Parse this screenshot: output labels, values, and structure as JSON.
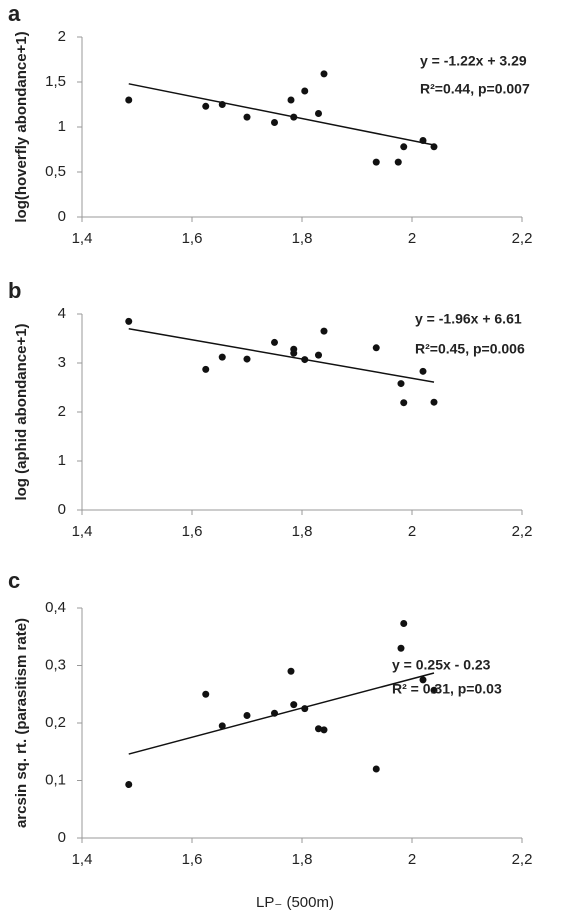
{
  "chart_data": [
    {
      "type": "scatter",
      "panel_label": "a",
      "y_label": "log(hoverfly abondance+1)",
      "equation": "y = -1.22x + 3.29",
      "stats": "R²=0.44,  p=0.007",
      "x": [
        1.485,
        1.625,
        1.655,
        1.7,
        1.75,
        1.78,
        1.785,
        1.805,
        1.83,
        1.84,
        1.935,
        1.975,
        1.985,
        2.02,
        2.04
      ],
      "values": [
        1.3,
        1.23,
        1.25,
        1.11,
        1.05,
        1.3,
        1.11,
        1.4,
        1.15,
        1.59,
        0.61,
        0.61,
        0.78,
        0.85,
        0.78
      ],
      "trendline": {
        "x": [
          1.485,
          2.04
        ],
        "y": [
          1.48,
          0.8
        ]
      },
      "color": "#111111",
      "xlim": [
        1.4,
        2.2
      ],
      "xticks": [
        {
          "value": 1.4,
          "label": "1,4"
        },
        {
          "value": 1.6,
          "label": "1,6"
        },
        {
          "value": 1.8,
          "label": "1,8"
        },
        2,
        {
          "value": 2.2,
          "label": "2,2"
        }
      ],
      "ylim": [
        0,
        2
      ],
      "yticks": [
        0,
        {
          "value": 0.5,
          "label": "0,5"
        },
        1,
        {
          "value": 1.5,
          "label": "1,5"
        },
        2
      ]
    },
    {
      "type": "scatter",
      "panel_label": "b",
      "y_label": "log (aphid abondance+1)",
      "equation": "y = -1.96x + 6.61",
      "stats": "R²=0.45,  p=0.006",
      "x": [
        1.485,
        1.625,
        1.655,
        1.7,
        1.75,
        1.785,
        1.785,
        1.805,
        1.83,
        1.84,
        1.935,
        1.98,
        1.985,
        2.02,
        2.04
      ],
      "values": [
        3.85,
        2.87,
        3.12,
        3.08,
        3.42,
        3.28,
        3.2,
        3.07,
        3.16,
        3.65,
        3.31,
        2.58,
        2.19,
        2.83,
        2.2
      ],
      "trendline": {
        "x": [
          1.485,
          2.04
        ],
        "y": [
          3.7,
          2.61
        ]
      },
      "color": "#111111",
      "xlim": [
        1.4,
        2.2
      ],
      "xticks": [
        {
          "value": 1.4,
          "label": "1,4"
        },
        {
          "value": 1.6,
          "label": "1,6"
        },
        {
          "value": 1.8,
          "label": "1,8"
        },
        2,
        {
          "value": 2.2,
          "label": "2,2"
        }
      ],
      "ylim": [
        0,
        4
      ],
      "yticks": [
        0,
        1,
        2,
        3,
        4
      ]
    },
    {
      "type": "scatter",
      "panel_label": "c",
      "y_label": "arcsin sq. rt. (parasitism rate)",
      "equation": "y = 0.25x - 0.23",
      "stats": "R² = 0.31, p=0.03",
      "x_label": "LP₋ (500m)",
      "x": [
        1.485,
        1.625,
        1.655,
        1.7,
        1.75,
        1.78,
        1.785,
        1.805,
        1.83,
        1.84,
        1.935,
        1.98,
        1.985,
        2.02,
        2.04
      ],
      "values": [
        0.093,
        0.25,
        0.195,
        0.213,
        0.217,
        0.29,
        0.232,
        0.225,
        0.19,
        0.188,
        0.12,
        0.33,
        0.373,
        0.275,
        0.257
      ],
      "trendline": {
        "x": [
          1.485,
          2.04
        ],
        "y": [
          0.146,
          0.287
        ]
      },
      "color": "#111111",
      "xlim": [
        1.4,
        2.2
      ],
      "xticks": [
        {
          "value": 1.4,
          "label": "1,4"
        },
        {
          "value": 1.6,
          "label": "1,6"
        },
        {
          "value": 1.8,
          "label": "1,8"
        },
        2,
        {
          "value": 2.2,
          "label": "2,2"
        }
      ],
      "ylim": [
        0,
        0.4
      ],
      "yticks": [
        0,
        {
          "value": 0.1,
          "label": "0,1"
        },
        {
          "value": 0.2,
          "label": "0,2"
        },
        {
          "value": 0.3,
          "label": "0,3"
        },
        {
          "value": 0.4,
          "label": "0,4"
        }
      ]
    }
  ]
}
